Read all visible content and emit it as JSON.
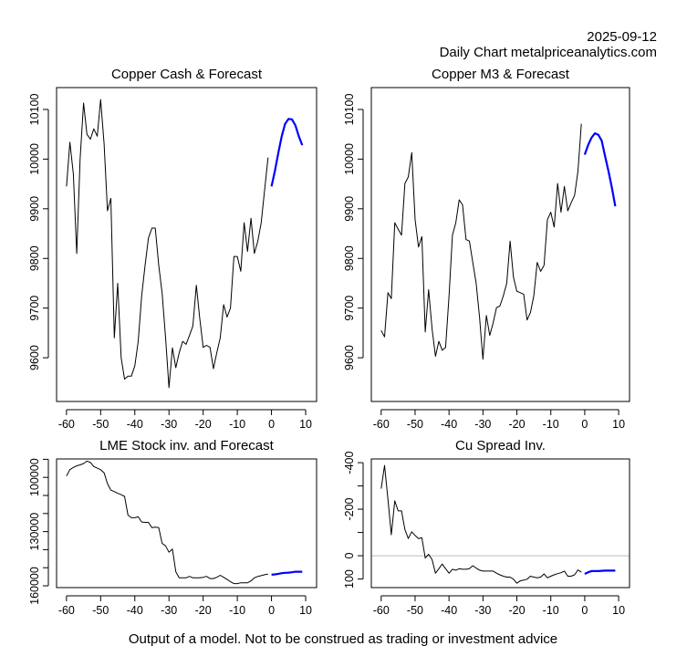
{
  "header": {
    "date": "2025-09-12",
    "subtitle": "Daily Chart metalpriceanalytics.com"
  },
  "footer": "Output of a model. Not to be construed as trading or investment advice",
  "colors": {
    "history": "#000000",
    "forecast": "#0000ff",
    "zero_line": "#bebebe"
  },
  "chart_data": [
    {
      "type": "line",
      "title": "Copper Cash & Forecast",
      "xlim": [
        -62.9,
        13.2
      ],
      "ylim": [
        9512,
        10144
      ],
      "y_reversed": false,
      "xticks": [
        -60,
        -50,
        -40,
        -30,
        -20,
        -10,
        0,
        10
      ],
      "xtick_labels": [
        "-60",
        "-50",
        "-40",
        "-30",
        "-20",
        "-10",
        "0",
        "10"
      ],
      "yticks": [
        9600,
        9700,
        9800,
        9900,
        10000,
        10100
      ],
      "ytick_labels": [
        "9600",
        "9700",
        "9800",
        "9900",
        "10000",
        "10100"
      ],
      "series": [
        {
          "role": "history",
          "x_start": -60,
          "values": [
            9945,
            10034,
            9970,
            9810,
            10000,
            10113,
            10050,
            10040,
            10061,
            10046,
            10120,
            10031,
            9896,
            9921,
            9640,
            9750,
            9600,
            9557,
            9563,
            9563,
            9584,
            9633,
            9725,
            9786,
            9841,
            9861,
            9861,
            9786,
            9730,
            9640,
            9540,
            9620,
            9580,
            9610,
            9633,
            9627,
            9645,
            9664,
            9746,
            9680,
            9621,
            9625,
            9621,
            9578,
            9610,
            9640,
            9707,
            9682,
            9700,
            9804,
            9804,
            9774,
            9872,
            9814,
            9881,
            9810,
            9835,
            9872,
            9939,
            10003
          ]
        },
        {
          "role": "forecast",
          "x_start": 0,
          "values": [
            9945,
            9976,
            10013,
            10046,
            10071,
            10081,
            10080,
            10068,
            10046,
            10028
          ]
        }
      ]
    },
    {
      "type": "line",
      "title": "Copper M3 & Forecast",
      "xlim": [
        -62.9,
        13.2
      ],
      "ylim": [
        9512,
        10144
      ],
      "y_reversed": false,
      "xticks": [
        -60,
        -50,
        -40,
        -30,
        -20,
        -10,
        0,
        10
      ],
      "xtick_labels": [
        "-60",
        "-50",
        "-40",
        "-30",
        "-20",
        "-10",
        "0",
        "10"
      ],
      "yticks": [
        9600,
        9700,
        9800,
        9900,
        10000,
        10100
      ],
      "ytick_labels": [
        "9600",
        "9700",
        "9800",
        "9900",
        "10000",
        "10100"
      ],
      "series": [
        {
          "role": "history",
          "x_start": -60,
          "values": [
            9655,
            9642,
            9731,
            9719,
            9872,
            9859,
            9847,
            9951,
            9964,
            10013,
            9878,
            9823,
            9844,
            9652,
            9737,
            9658,
            9603,
            9633,
            9615,
            9621,
            9725,
            9847,
            9872,
            9918,
            9908,
            9838,
            9835,
            9792,
            9750,
            9682,
            9597,
            9685,
            9645,
            9670,
            9701,
            9704,
            9725,
            9750,
            9835,
            9762,
            9734,
            9731,
            9728,
            9676,
            9691,
            9725,
            9792,
            9774,
            9786,
            9878,
            9893,
            9863,
            9951,
            9893,
            9945,
            9896,
            9912,
            9927,
            9976,
            10071
          ]
        },
        {
          "role": "forecast",
          "x_start": 0,
          "values": [
            10009,
            10028,
            10043,
            10052,
            10049,
            10037,
            10006,
            9976,
            9942,
            9905
          ]
        }
      ]
    },
    {
      "type": "line",
      "title": "LME Stock inv. and Forecast",
      "xlim": [
        -62.9,
        13.2
      ],
      "ylim": [
        89800,
        161000
      ],
      "y_reversed": true,
      "xticks": [
        -60,
        -50,
        -40,
        -30,
        -20,
        -10,
        0,
        10
      ],
      "xtick_labels": [
        "-60",
        "-50",
        "-40",
        "-30",
        "-20",
        "-10",
        "0",
        "10"
      ],
      "yticks": [
        90000,
        100000,
        110000,
        120000,
        130000,
        140000,
        150000,
        160000
      ],
      "ytick_labels": [
        "",
        "100000",
        "",
        "",
        "130000",
        "",
        "",
        "160000"
      ],
      "series": [
        {
          "role": "history",
          "x_start": -60,
          "values": [
            99200,
            95700,
            94500,
            93600,
            93100,
            92300,
            91000,
            91700,
            94000,
            94900,
            95700,
            97500,
            103500,
            107000,
            107900,
            108800,
            109600,
            110500,
            120900,
            122300,
            122300,
            121800,
            124700,
            124900,
            124900,
            127800,
            127500,
            127800,
            136500,
            137900,
            141400,
            139700,
            152200,
            155600,
            155600,
            155600,
            154800,
            155600,
            155600,
            155600,
            155300,
            154800,
            156000,
            156000,
            155300,
            154200,
            155300,
            156500,
            157700,
            158800,
            158800,
            158300,
            158300,
            158300,
            157300,
            155600,
            154800,
            154400,
            153900,
            153500
          ]
        },
        {
          "role": "forecast",
          "x_start": 0,
          "values": [
            153900,
            153700,
            153400,
            153000,
            152800,
            152700,
            152500,
            152200,
            152200,
            152200
          ]
        }
      ]
    },
    {
      "type": "line",
      "title": "Cu Spread Inv.",
      "xlim": [
        -62.9,
        13.2
      ],
      "ylim": [
        -416,
        137
      ],
      "y_reversed": true,
      "zero_line": true,
      "xticks": [
        -60,
        -50,
        -40,
        -30,
        -20,
        -10,
        0,
        10
      ],
      "xtick_labels": [
        "-60",
        "-50",
        "-40",
        "-30",
        "-20",
        "-10",
        "0",
        "10"
      ],
      "yticks": [
        -400,
        -300,
        -200,
        -100,
        0,
        100
      ],
      "ytick_labels": [
        "-400",
        "",
        "-200",
        "",
        "0",
        "100"
      ],
      "series": [
        {
          "role": "history",
          "x_start": -60,
          "values": [
            -288,
            -388,
            -243,
            -90,
            -236,
            -193,
            -193,
            -113,
            -74,
            -103,
            -87,
            -74,
            -77,
            10,
            -6,
            17,
            75,
            56,
            36,
            56,
            75,
            58,
            62,
            56,
            58,
            58,
            56,
            43,
            53,
            62,
            66,
            66,
            66,
            66,
            75,
            82,
            88,
            92,
            92,
            101,
            118,
            108,
            105,
            101,
            88,
            92,
            95,
            92,
            78,
            95,
            88,
            82,
            77,
            73,
            66,
            88,
            88,
            82,
            61,
            71
          ]
        },
        {
          "role": "forecast",
          "x_start": 0,
          "values": [
            78,
            71,
            66,
            66,
            66,
            65,
            64,
            64,
            64,
            64
          ]
        }
      ]
    }
  ]
}
